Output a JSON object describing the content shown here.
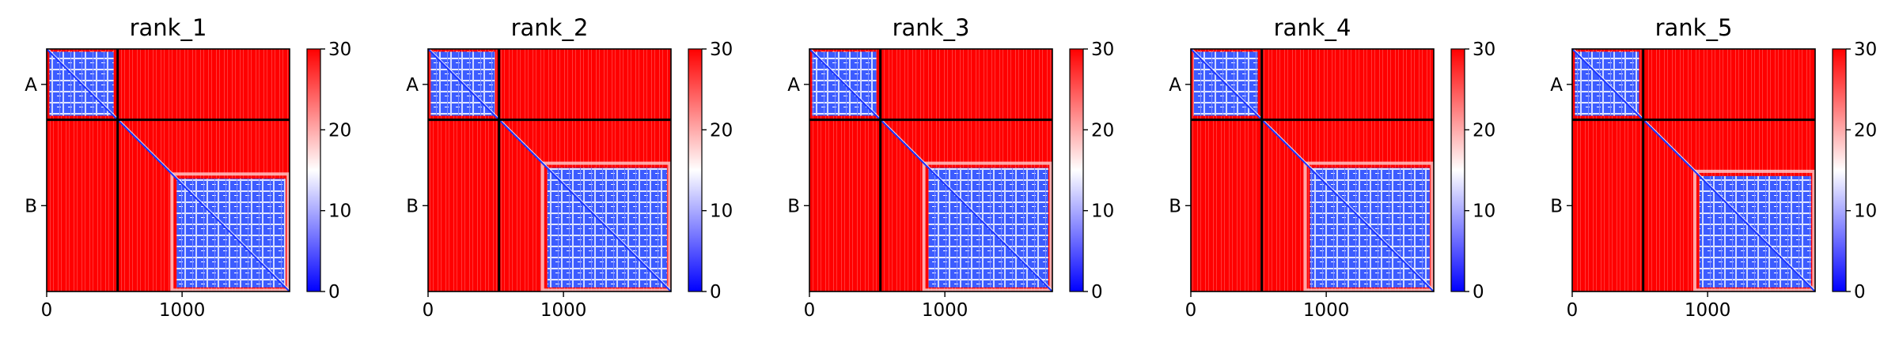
{
  "chart_data": {
    "type": "heatmap",
    "colorscale": {
      "name": "bwr",
      "low_color": "#0000ff",
      "mid_color": "#ffffff",
      "high_color": "#ff0000",
      "vmin": 0,
      "vmax": 30,
      "ticks": [
        0,
        10,
        20,
        30
      ],
      "tick_labels": [
        "0",
        "10",
        "20",
        "30"
      ]
    },
    "divider_color": "#000000",
    "x_range": [
      0,
      1794
    ],
    "y_range": [
      1794,
      0
    ],
    "chain_boundary": 524,
    "xticks": [
      0,
      1000
    ],
    "xtick_labels": [
      "0",
      "1000"
    ],
    "chains": [
      {
        "label": "A",
        "start": 0,
        "end": 524,
        "center": 262
      },
      {
        "label": "B",
        "start": 524,
        "end": 1794,
        "center": 1159
      }
    ],
    "domain_B_start": 960,
    "panels": [
      {
        "title": "rank_1",
        "domain_B_start": 960
      },
      {
        "title": "rank_2",
        "domain_B_start": 880
      },
      {
        "title": "rank_3",
        "domain_B_start": 880
      },
      {
        "title": "rank_4",
        "domain_B_start": 880
      },
      {
        "title": "rank_5",
        "domain_B_start": 940
      }
    ]
  }
}
